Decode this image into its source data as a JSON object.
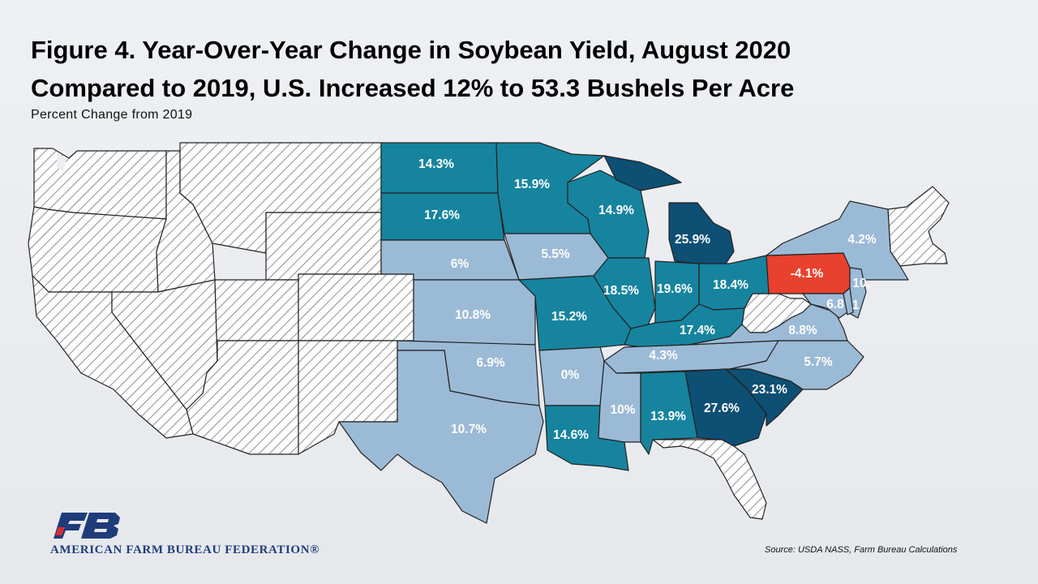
{
  "title_line1": "Figure 4. Year-Over-Year Change in Soybean Yield, August 2020",
  "title_line2": "Compared to 2019, U.S. Increased 12% to 53.3 Bushels Per Acre",
  "subtitle": "Percent Change from 2019",
  "source": "Source: USDA NASS, Farm Bureau Calculations",
  "organization": "AMERICAN FARM BUREAU FEDERATION®",
  "logo_text": "FB",
  "legend_colors": {
    "no_data": "hatched",
    "negative": "#e8412e",
    "low": "#9bbad6",
    "mid": "#16849e",
    "high": "#0e4f74"
  },
  "chart_data": {
    "type": "choropleth",
    "title": "Figure 4. Year-Over-Year Change in Soybean Yield, August 2020 Compared to 2019, U.S. Increased 12% to 53.3 Bushels Per Acre",
    "unit": "Percent Change from 2019",
    "values": [
      {
        "state": "ND",
        "label": "14.3%",
        "value": 14.3
      },
      {
        "state": "MN",
        "label": "15.9%",
        "value": 15.9
      },
      {
        "state": "SD",
        "label": "17.6%",
        "value": 17.6
      },
      {
        "state": "WI",
        "label": "14.9%",
        "value": 14.9
      },
      {
        "state": "MI",
        "label": "25.9%",
        "value": 25.9
      },
      {
        "state": "NY",
        "label": "4.2%",
        "value": 4.2
      },
      {
        "state": "NE",
        "label": "6%",
        "value": 6
      },
      {
        "state": "IA",
        "label": "5.5%",
        "value": 5.5
      },
      {
        "state": "PA",
        "label": "-4.1%",
        "value": -4.1
      },
      {
        "state": "IL",
        "label": "18.5%",
        "value": 18.5
      },
      {
        "state": "IN",
        "label": "19.6%",
        "value": 19.6
      },
      {
        "state": "OH",
        "label": "18.4%",
        "value": 18.4
      },
      {
        "state": "NJ",
        "label": "10.",
        "value": null
      },
      {
        "state": "MD",
        "label": "6.8",
        "value": null
      },
      {
        "state": "DE",
        "label": "1",
        "value": null
      },
      {
        "state": "KS",
        "label": "10.8%",
        "value": 10.8
      },
      {
        "state": "MO",
        "label": "15.2%",
        "value": 15.2
      },
      {
        "state": "KY",
        "label": "17.4%",
        "value": 17.4
      },
      {
        "state": "VA",
        "label": "8.8%",
        "value": 8.8
      },
      {
        "state": "OK",
        "label": "6.9%",
        "value": 6.9
      },
      {
        "state": "AR",
        "label": "0%",
        "value": 0
      },
      {
        "state": "TN",
        "label": "4.3%",
        "value": 4.3
      },
      {
        "state": "NC",
        "label": "5.7%",
        "value": 5.7
      },
      {
        "state": "SC",
        "label": "23.1%",
        "value": 23.1
      },
      {
        "state": "GA",
        "label": "27.6%",
        "value": 27.6
      },
      {
        "state": "AL",
        "label": "13.9%",
        "value": 13.9
      },
      {
        "state": "MS",
        "label": "10%",
        "value": 10
      },
      {
        "state": "LA",
        "label": "14.6%",
        "value": 14.6
      },
      {
        "state": "TX",
        "label": "10.7%",
        "value": 10.7
      }
    ]
  }
}
